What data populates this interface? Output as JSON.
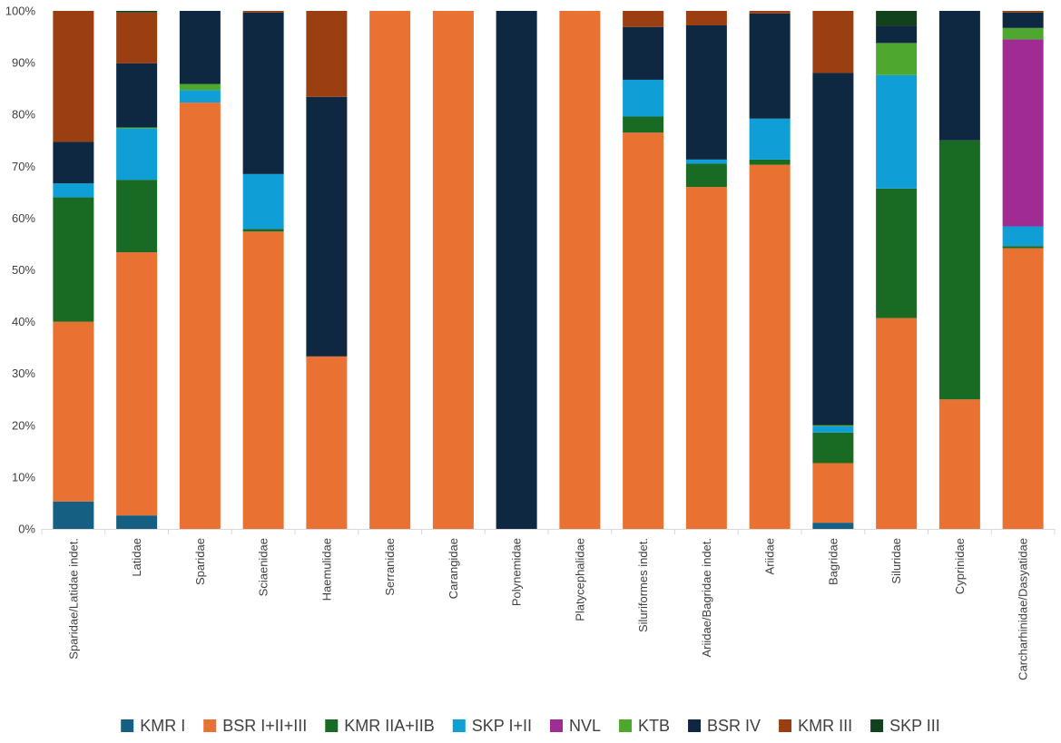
{
  "chart_data": {
    "type": "bar",
    "stacked": "percent",
    "title": "",
    "xlabel": "",
    "ylabel": "",
    "ylim": [
      0,
      100
    ],
    "yticks": [
      "0%",
      "10%",
      "20%",
      "30%",
      "40%",
      "50%",
      "60%",
      "70%",
      "80%",
      "90%",
      "100%"
    ],
    "legend_position": "bottom",
    "categories": [
      "Sparidae/Latidae indet.",
      "Latidae",
      "Sparidae",
      "Sciaenidae",
      "Haemulidae",
      "Serranidae",
      "Carangidae",
      "Polynemidae",
      "Platycephalidae",
      "Siluriformes indet.",
      "Ariidae/Bagridae indet.",
      "Ariidae",
      "Bagridae",
      "Siluridae",
      "Cyprinidae",
      "Carcharhinidae/Dasyatidae"
    ],
    "series": [
      {
        "name": "KMR I",
        "color": "#156082",
        "values": [
          5.3,
          2.6,
          0,
          0,
          0,
          0,
          0,
          0,
          0,
          0,
          0,
          0,
          1.2,
          0,
          0,
          0
        ]
      },
      {
        "name": "BSR I+II+III",
        "color": "#E97132",
        "values": [
          34.7,
          50.8,
          82.3,
          57.4,
          33.3,
          100,
          100,
          0,
          100,
          76.5,
          66.0,
          70.3,
          11.5,
          40.7,
          25.0,
          54.2
        ]
      },
      {
        "name": "KMR IIA+IIB",
        "color": "#196B24",
        "values": [
          24.0,
          14.0,
          0,
          0.5,
          0,
          0,
          0,
          0,
          0,
          3.1,
          4.5,
          1.0,
          5.9,
          25.0,
          50.0,
          0.4
        ]
      },
      {
        "name": "SKP I+II",
        "color": "#0F9ED5",
        "values": [
          2.7,
          9.9,
          2.4,
          10.6,
          0,
          0,
          0,
          0,
          0,
          7.1,
          0.8,
          7.9,
          1.2,
          21.9,
          0,
          3.8
        ]
      },
      {
        "name": "NVL",
        "color": "#A02B93",
        "values": [
          0,
          0,
          0,
          0,
          0,
          0,
          0,
          0,
          0,
          0,
          0,
          0,
          0,
          0,
          0,
          36.1
        ]
      },
      {
        "name": "KTB",
        "color": "#4EA72E",
        "values": [
          0,
          0.2,
          1.2,
          0,
          0,
          0,
          0,
          0,
          0,
          0,
          0,
          0,
          0.2,
          6.2,
          0,
          2.2
        ]
      },
      {
        "name": "BSR IV",
        "color": "#0E2841",
        "values": [
          8.0,
          12.4,
          14.1,
          31.2,
          50.1,
          0,
          0,
          100,
          0,
          10.2,
          25.9,
          20.3,
          68.0,
          3.3,
          25.0,
          3.0
        ]
      },
      {
        "name": "KMR III",
        "color": "#993F11",
        "values": [
          25.3,
          9.8,
          0,
          0.3,
          16.6,
          0,
          0,
          0,
          0,
          3.1,
          2.8,
          0.5,
          12.0,
          0,
          0,
          0.3
        ]
      },
      {
        "name": "SKP III",
        "color": "#12421C",
        "values": [
          0,
          0.3,
          0,
          0,
          0,
          0,
          0,
          0,
          0,
          0,
          0,
          0,
          0,
          2.9,
          0,
          0
        ]
      }
    ]
  }
}
